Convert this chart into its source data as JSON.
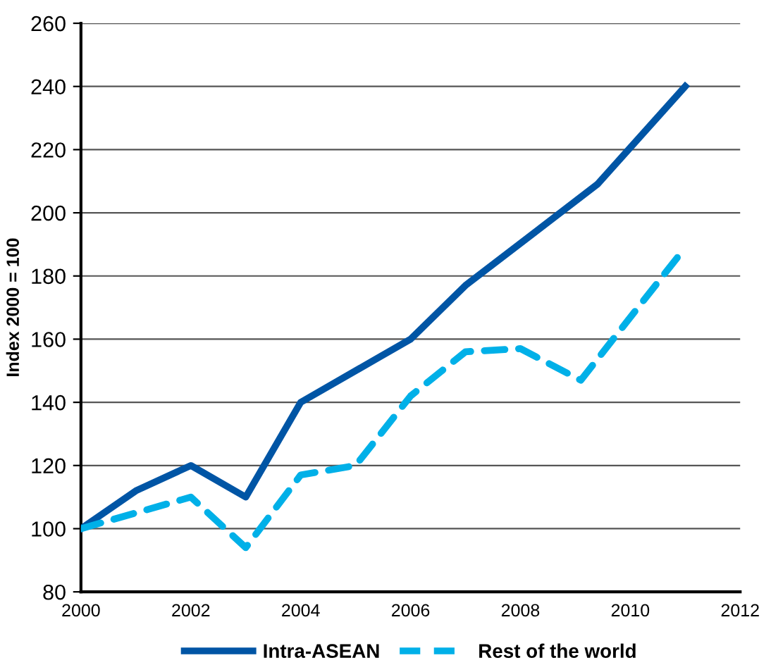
{
  "chart_data": {
    "type": "line",
    "ylabel": "Index 2000 = 100",
    "xlim": [
      2000,
      2012
    ],
    "xticks": [
      2000,
      2002,
      2004,
      2006,
      2008,
      2010,
      2012
    ],
    "ylim": [
      80,
      260
    ],
    "yticks": [
      80,
      100,
      120,
      140,
      160,
      180,
      200,
      220,
      240,
      260
    ],
    "grid": "y",
    "legend": "bottom",
    "marker": "none",
    "series": [
      {
        "name": "Intra-ASEAN",
        "color": "#0055a5",
        "line_style": "solid",
        "x": [
          2000,
          2001,
          2002,
          2003,
          2004,
          2005,
          2006,
          2007,
          2009.4,
          2011
        ],
        "values": [
          100,
          112,
          120,
          110,
          140,
          150,
          160,
          177,
          209,
          240
        ]
      },
      {
        "name": "Rest of the world",
        "color": "#00b0e8",
        "line_style": "dashed",
        "x": [
          2000,
          2001,
          2002,
          2003,
          2004,
          2005,
          2006,
          2007,
          2008,
          2009.1,
          2011
        ],
        "values": [
          100,
          105,
          110,
          94,
          117,
          120,
          142,
          156,
          157,
          147,
          189
        ]
      }
    ]
  }
}
